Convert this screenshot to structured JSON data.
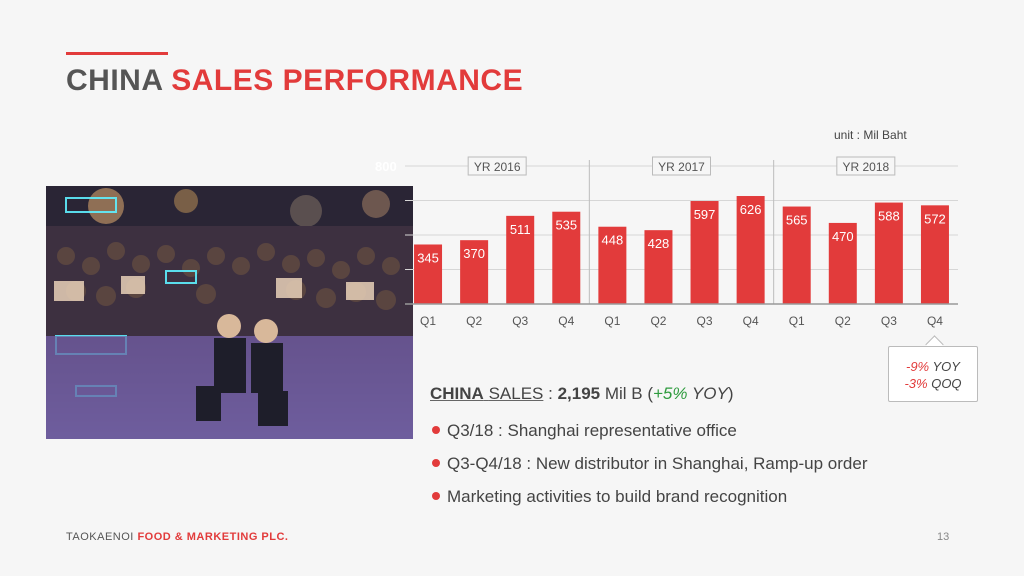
{
  "header": {
    "title_part1": "CHINA",
    "title_part2": "SALES PERFORMANCE"
  },
  "unit_label": "unit : Mil Baht",
  "colors": {
    "accent": "#e23b3b",
    "bar": "#e23b3b",
    "positive": "#2e9b3e",
    "text": "#444444"
  },
  "photo": {
    "icon": "crowd-event-photo"
  },
  "chart_data": {
    "type": "bar",
    "categories": [
      "Q1",
      "Q2",
      "Q3",
      "Q4",
      "Q1",
      "Q2",
      "Q3",
      "Q4",
      "Q1",
      "Q2",
      "Q3",
      "Q4"
    ],
    "values": [
      345,
      370,
      511,
      535,
      448,
      428,
      597,
      626,
      565,
      470,
      588,
      572
    ],
    "groups": [
      {
        "label": "YR 2016",
        "start": 0,
        "end": 3
      },
      {
        "label": "YR 2017",
        "start": 4,
        "end": 7
      },
      {
        "label": "YR 2018",
        "start": 8,
        "end": 11
      }
    ],
    "y_axis_top_label": "800",
    "ylim": [
      0,
      800
    ],
    "grid": true,
    "legend": "none",
    "title": "",
    "xlabel": "",
    "ylabel": ""
  },
  "callout": {
    "yoy_value": "-9%",
    "yoy_label": "YOY",
    "qoq_value": "-3%",
    "qoq_label": "QOQ"
  },
  "summary": {
    "label_a": "CHINA",
    "label_b": "SALES",
    "sep": " : ",
    "value": "2,195",
    "unit": " Mil B (",
    "growth": "+5%",
    "growth_label": " YOY",
    "close": ")"
  },
  "bullets": [
    "Q3/18 : Shanghai representative office",
    "Q3-Q4/18 : New distributor in Shanghai, Ramp-up order",
    "Marketing activities to build brand recognition"
  ],
  "footer": {
    "company_a": "TAOKAENOI",
    "company_b": "FOOD & MARKETING PLC."
  },
  "page_number": "13"
}
